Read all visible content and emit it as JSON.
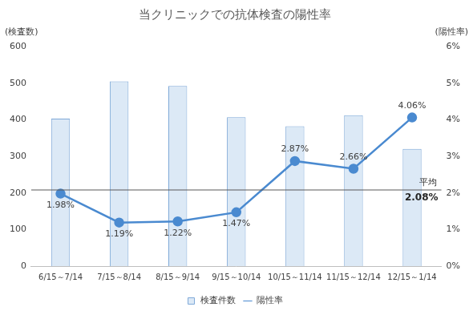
{
  "chart_data": {
    "type": "bar",
    "title": "当クリニックでの抗体検査の陽性率",
    "y_label": "(検査数)",
    "y2_label": "(陽性率)",
    "categories": [
      "6/15～7/14",
      "7/15～8/14",
      "8/15～9/14",
      "9/15～10/14",
      "10/15～11/14",
      "11/15～12/14",
      "12/15～1/14"
    ],
    "series": [
      {
        "name": "検査件数",
        "type": "bar",
        "color": "#dce9f6",
        "values": [
          403,
          505,
          492,
          407,
          382,
          412,
          320
        ]
      },
      {
        "name": "陽性率",
        "type": "line",
        "axis": "y2",
        "color": "#4a8ad0",
        "marker": "circle",
        "data_labels": true,
        "values": [
          1.98,
          1.19,
          1.22,
          1.47,
          2.87,
          2.66,
          4.06
        ],
        "value_labels": [
          "1.98%",
          "1.19%",
          "1.22%",
          "1.47%",
          "2.87%",
          "2.66%",
          "4.06%"
        ]
      }
    ],
    "ylim": [
      0,
      600
    ],
    "yticks": [
      0,
      100,
      200,
      300,
      400,
      500,
      600
    ],
    "y2lim": [
      0,
      6
    ],
    "y2ticks": [
      {
        "value": 0,
        "label": "0%"
      },
      {
        "value": 1,
        "label": "1%"
      },
      {
        "value": 2,
        "label": "2%"
      },
      {
        "value": 3,
        "label": "3%"
      },
      {
        "value": 4,
        "label": "4%"
      },
      {
        "value": 5,
        "label": "5%"
      },
      {
        "value": 6,
        "label": "6%"
      }
    ],
    "annotations": [
      {
        "text": "平均",
        "value": 2.08,
        "label": "2.08%",
        "axis": "y2"
      }
    ],
    "grid": false,
    "legend": "bottom"
  }
}
